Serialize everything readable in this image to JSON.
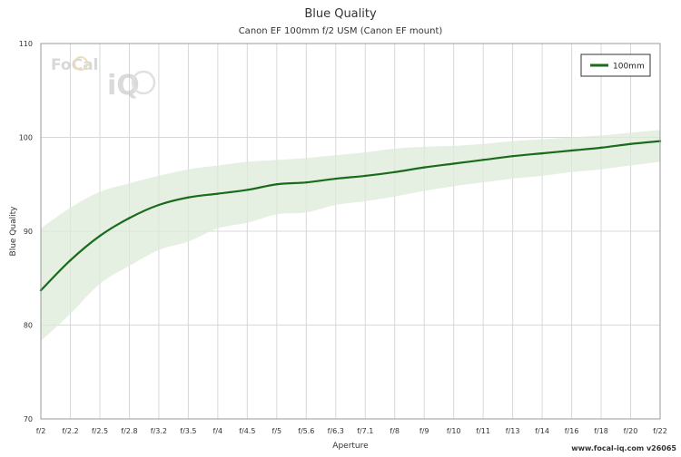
{
  "chart_data": {
    "type": "line",
    "title": "Blue Quality",
    "subtitle": "Canon EF 100mm f/2 USM (Canon EF mount)",
    "xlabel": "Aperture",
    "ylabel": "Blue Quality",
    "x": [
      "f/2",
      "f/2.2",
      "f/2.5",
      "f/2.8",
      "f/3.2",
      "f/3.5",
      "f/4",
      "f/4.5",
      "f/5",
      "f/5.6",
      "f/6.3",
      "f/7.1",
      "f/8",
      "f/9",
      "f/10",
      "f/11",
      "f/13",
      "f/14",
      "f/16",
      "f/18",
      "f/20",
      "f/22"
    ],
    "ylim": [
      70,
      110
    ],
    "yticks": [
      70,
      80,
      90,
      100,
      110
    ],
    "grid": true,
    "legend_position": "top-right",
    "series": [
      {
        "name": "100mm",
        "color": "#1a6b1a",
        "values": [
          83.7,
          86.9,
          89.5,
          91.4,
          92.8,
          93.6,
          94.0,
          94.4,
          95.0,
          95.2,
          95.6,
          95.9,
          96.3,
          96.8,
          97.2,
          97.6,
          98.0,
          98.3,
          98.6,
          98.9,
          99.3,
          99.6
        ],
        "band_upper": [
          90.3,
          92.5,
          94.2,
          95.1,
          95.9,
          96.6,
          97.0,
          97.4,
          97.6,
          97.8,
          98.1,
          98.4,
          98.8,
          99.0,
          99.1,
          99.3,
          99.6,
          99.8,
          100.0,
          100.2,
          100.5,
          100.8
        ],
        "band_lower": [
          78.3,
          81.2,
          84.4,
          86.3,
          88.0,
          88.9,
          90.3,
          90.9,
          91.8,
          92.0,
          92.8,
          93.2,
          93.7,
          94.3,
          94.8,
          95.2,
          95.6,
          95.9,
          96.3,
          96.6,
          97.0,
          97.4
        ]
      }
    ]
  },
  "branding": {
    "logo_text_top": "FoCal",
    "logo_text_bottom": "iQ",
    "footer": "www.focal-iq.com  v26065"
  }
}
